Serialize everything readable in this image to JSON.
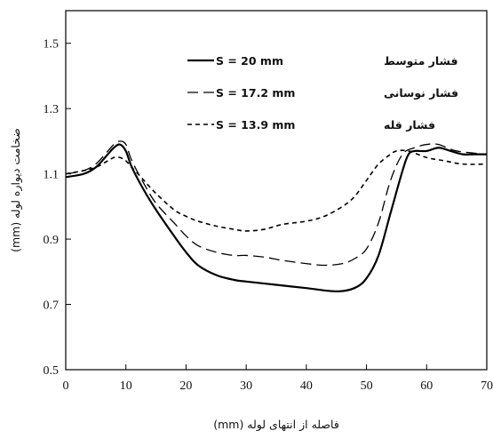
{
  "chart_data": {
    "type": "line",
    "xlabel": "فاصله از انتهای لوله (mm)",
    "ylabel": "ضخامت دیواره لوله (mm)",
    "xlim": [
      0,
      70
    ],
    "ylim": [
      0.5,
      1.6
    ],
    "x_ticks": [
      "0",
      "10",
      "20",
      "30",
      "40",
      "50",
      "60",
      "70"
    ],
    "y_ticks": [
      "0.5",
      "0.7",
      "0.9",
      "1.1",
      "1.3",
      "1.5"
    ],
    "grid": false,
    "legend_position": "top-center",
    "series": [
      {
        "name": "فشار متوسط",
        "legend_label": "S = 20 mm",
        "style": "solid",
        "color": "#000000",
        "x": [
          0,
          3,
          5,
          7,
          8,
          9,
          10,
          11,
          13,
          15,
          18,
          20,
          22,
          25,
          28,
          30,
          35,
          40,
          45,
          48,
          50,
          52,
          54,
          56,
          57,
          58,
          60,
          62,
          64,
          66,
          68,
          70
        ],
        "y": [
          1.09,
          1.1,
          1.12,
          1.16,
          1.18,
          1.19,
          1.17,
          1.12,
          1.05,
          0.99,
          0.91,
          0.86,
          0.82,
          0.79,
          0.775,
          0.77,
          0.76,
          0.75,
          0.74,
          0.75,
          0.78,
          0.85,
          0.98,
          1.11,
          1.16,
          1.17,
          1.17,
          1.18,
          1.17,
          1.16,
          1.16,
          1.16
        ]
      },
      {
        "name": "فشار نوسانی",
        "legend_label": "S = 17.2 mm",
        "style": "long-dash",
        "color": "#000000",
        "x": [
          0,
          3,
          5,
          7,
          8,
          9,
          10,
          11,
          13,
          15,
          18,
          20,
          22,
          25,
          28,
          30,
          33,
          36,
          40,
          43,
          46,
          48,
          50,
          52,
          54,
          56,
          58,
          60,
          62,
          65,
          70
        ],
        "y": [
          1.1,
          1.11,
          1.13,
          1.17,
          1.19,
          1.2,
          1.19,
          1.14,
          1.07,
          1.01,
          0.95,
          0.91,
          0.88,
          0.86,
          0.85,
          0.85,
          0.845,
          0.835,
          0.825,
          0.82,
          0.825,
          0.84,
          0.87,
          0.95,
          1.08,
          1.16,
          1.18,
          1.19,
          1.19,
          1.17,
          1.16
        ]
      },
      {
        "name": "فشار قله",
        "legend_label": "S = 13.9 mm",
        "style": "short-dash",
        "color": "#000000",
        "x": [
          0,
          3,
          5,
          7,
          8,
          9,
          10,
          11,
          13,
          15,
          18,
          20,
          22,
          25,
          28,
          30,
          33,
          36,
          40,
          43,
          46,
          48,
          50,
          52,
          54,
          55,
          57,
          60,
          63,
          66,
          70
        ],
        "y": [
          1.1,
          1.11,
          1.12,
          1.14,
          1.15,
          1.15,
          1.14,
          1.12,
          1.08,
          1.04,
          0.99,
          0.97,
          0.955,
          0.94,
          0.93,
          0.925,
          0.93,
          0.945,
          0.955,
          0.97,
          1.0,
          1.03,
          1.08,
          1.13,
          1.16,
          1.17,
          1.17,
          1.15,
          1.14,
          1.13,
          1.13
        ]
      }
    ]
  }
}
